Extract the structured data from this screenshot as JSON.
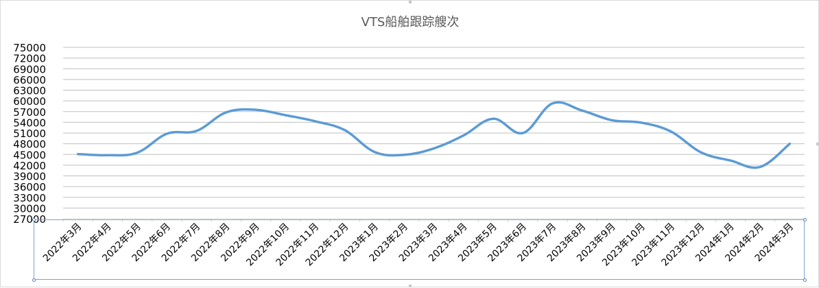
{
  "chart_data": {
    "type": "line",
    "title": "VTS船舶跟踪艘次",
    "xlabel": "",
    "ylabel": "",
    "categories": [
      "2022年3月",
      "2022年4月",
      "2022年5月",
      "2022年6月",
      "2022年7月",
      "2022年8月",
      "2022年9月",
      "2022年10月",
      "2022年11月",
      "2022年12月",
      "2023年1月",
      "2023年2月",
      "2023年3月",
      "2023年4月",
      "2023年5月",
      "2023年6月",
      "2023年7月",
      "2023年8月",
      "2023年9月",
      "2023年10月",
      "2023年11月",
      "2023年12月",
      "2024年1月",
      "2024年2月",
      "2024年3月"
    ],
    "series": [
      {
        "values": [
          45100,
          44800,
          45500,
          50800,
          51600,
          56800,
          57500,
          56000,
          54300,
          51800,
          45700,
          44900,
          46700,
          50300,
          55000,
          51000,
          59300,
          57300,
          54600,
          53900,
          51400,
          45600,
          43300,
          41500,
          48000
        ]
      }
    ],
    "ylim": [
      27000,
      75000
    ],
    "yticks": [
      "75000",
      "72000",
      "69000",
      "66000",
      "63000",
      "60000",
      "57000",
      "54000",
      "51000",
      "48000",
      "45000",
      "42000",
      "39000",
      "36000",
      "33000",
      "30000",
      "27000"
    ],
    "grid": true,
    "legend": "none",
    "line_color": "#5b9bd5",
    "grid_color": "#bfbfbf",
    "axis_color": "#d9d9d9",
    "text_color": "#000000",
    "title_color": "#595959"
  }
}
